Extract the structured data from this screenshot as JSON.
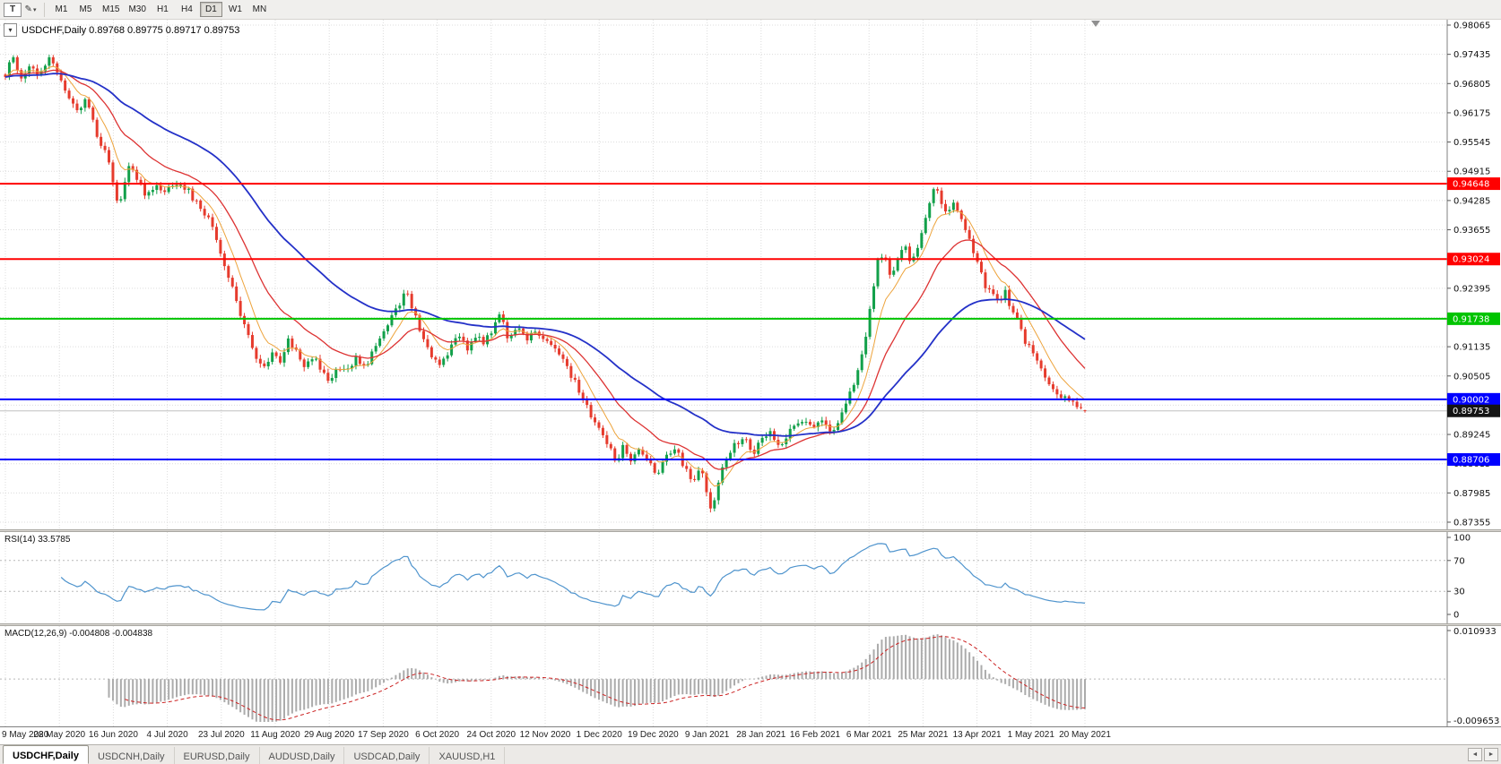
{
  "colors": {
    "up": "#12a04a",
    "down": "#e63b2d",
    "ma_fast": "#eda33b",
    "ma_mid": "#dd3333",
    "ma_slow": "#2431c8",
    "grid": "#dcdcdc"
  },
  "toolbar": {
    "text_tool_label": "T",
    "cursor_tool_glyph": "✎",
    "caret_glyph": "▾",
    "timeframes": [
      "M1",
      "M5",
      "M15",
      "M30",
      "H1",
      "H4",
      "D1",
      "W1",
      "MN"
    ],
    "active_timeframe": "D1"
  },
  "chart": {
    "header": "USDCHF,Daily 0.89768 0.89775 0.89717 0.89753",
    "header_toggle_glyph": "▾",
    "y_ticks": [
      "0.98065",
      "0.97435",
      "0.96805",
      "0.96175",
      "0.95545",
      "0.94915",
      "0.94285",
      "0.93655",
      "0.93025",
      "0.92395",
      "0.91765",
      "0.91135",
      "0.90505",
      "0.89875",
      "0.89245",
      "0.88615",
      "0.87985",
      "0.87355"
    ],
    "levels": [
      {
        "price": 0.94648,
        "label": "0.94648",
        "color": "#ff0000"
      },
      {
        "price": 0.93024,
        "label": "0.93024",
        "color": "#ff0000"
      },
      {
        "price": 0.91738,
        "label": "0.91738",
        "color": "#00c400"
      },
      {
        "price": 0.90002,
        "label": "0.90002",
        "color": "#0000ff"
      },
      {
        "price": 0.88706,
        "label": "0.88706",
        "color": "#0000ff"
      }
    ],
    "current_price": {
      "price": 0.89753,
      "label": "0.89753",
      "badge_bg": "#141414",
      "line_color": "#c0c0c0"
    },
    "dates": [
      "9 May 2020",
      "28 May 2020",
      "16 Jun 2020",
      "4 Jul 2020",
      "23 Jul 2020",
      "11 Aug 2020",
      "29 Aug 2020",
      "17 Sep 2020",
      "6 Oct 2020",
      "24 Oct 2020",
      "12 Nov 2020",
      "1 Dec 2020",
      "19 Dec 2020",
      "9 Jan 2021",
      "28 Jan 2021",
      "16 Feb 2021",
      "6 Mar 2021",
      "25 Mar 2021",
      "13 Apr 2021",
      "1 May 2021",
      "20 May 2021"
    ]
  },
  "rsi": {
    "label": "RSI(14) 33.5785",
    "axis_labels": [
      "100",
      "70",
      "30",
      "0"
    ],
    "axis_values": [
      100,
      70,
      30,
      0
    ],
    "guide_levels": [
      70,
      30
    ],
    "line_color": "#4f94cd"
  },
  "macd": {
    "label": "MACD(12,26,9) -0.004808 -0.004838",
    "axis_top": "0.010933",
    "axis_bottom": "-0.009653",
    "hist_color": "#ababab",
    "signal_color": "#cc2222"
  },
  "tabs": {
    "items": [
      "USDCHF,Daily",
      "USDCNH,Daily",
      "EURUSD,Daily",
      "AUDUSD,Daily",
      "USDCAD,Daily",
      "XAUUSD,H1"
    ],
    "active_index": 0,
    "scroll_left_glyph": "◄",
    "scroll_right_glyph": "►"
  },
  "chart_data": {
    "type": "candlestick",
    "symbol": "USDCHF",
    "timeframe": "Daily",
    "ohlc_last": {
      "open": 0.89768,
      "high": 0.89775,
      "low": 0.89717,
      "close": 0.89753
    },
    "bars": 272,
    "y_axis_range": [
      0.87355,
      0.98065
    ],
    "x_axis_dates": [
      "9 May 2020",
      "28 May 2020",
      "16 Jun 2020",
      "4 Jul 2020",
      "23 Jul 2020",
      "11 Aug 2020",
      "29 Aug 2020",
      "17 Sep 2020",
      "6 Oct 2020",
      "24 Oct 2020",
      "12 Nov 2020",
      "1 Dec 2020",
      "19 Dec 2020",
      "9 Jan 2021",
      "28 Jan 2021",
      "16 Feb 2021",
      "6 Mar 2021",
      "25 Mar 2021",
      "13 Apr 2021",
      "1 May 2021",
      "20 May 2021"
    ],
    "horizontal_levels": [
      0.94648,
      0.93024,
      0.91738,
      0.90002,
      0.88706
    ],
    "current_price": 0.89753,
    "price_path_anchors": [
      [
        0.0,
        0.97
      ],
      [
        0.006,
        0.9742
      ],
      [
        0.014,
        0.9688
      ],
      [
        0.022,
        0.9725
      ],
      [
        0.032,
        0.97
      ],
      [
        0.04,
        0.9735
      ],
      [
        0.05,
        0.9692
      ],
      [
        0.06,
        0.965
      ],
      [
        0.068,
        0.9612
      ],
      [
        0.076,
        0.965
      ],
      [
        0.085,
        0.9565
      ],
      [
        0.095,
        0.952
      ],
      [
        0.101,
        0.9445
      ],
      [
        0.106,
        0.9425
      ],
      [
        0.114,
        0.9498
      ],
      [
        0.122,
        0.9478
      ],
      [
        0.13,
        0.944
      ],
      [
        0.138,
        0.9462
      ],
      [
        0.148,
        0.9445
      ],
      [
        0.158,
        0.9468
      ],
      [
        0.168,
        0.9455
      ],
      [
        0.178,
        0.942
      ],
      [
        0.188,
        0.9395
      ],
      [
        0.194,
        0.935
      ],
      [
        0.2,
        0.931
      ],
      [
        0.208,
        0.9255
      ],
      [
        0.216,
        0.9195
      ],
      [
        0.224,
        0.914
      ],
      [
        0.232,
        0.9085
      ],
      [
        0.24,
        0.9065
      ],
      [
        0.248,
        0.911
      ],
      [
        0.256,
        0.9075
      ],
      [
        0.262,
        0.9135
      ],
      [
        0.27,
        0.91
      ],
      [
        0.278,
        0.907
      ],
      [
        0.286,
        0.909
      ],
      [
        0.294,
        0.906
      ],
      [
        0.3,
        0.904
      ],
      [
        0.308,
        0.9075
      ],
      [
        0.316,
        0.9058
      ],
      [
        0.324,
        0.909
      ],
      [
        0.332,
        0.9068
      ],
      [
        0.34,
        0.91
      ],
      [
        0.35,
        0.914
      ],
      [
        0.36,
        0.919
      ],
      [
        0.372,
        0.9232
      ],
      [
        0.38,
        0.918
      ],
      [
        0.388,
        0.912
      ],
      [
        0.396,
        0.9082
      ],
      [
        0.404,
        0.9076
      ],
      [
        0.412,
        0.911
      ],
      [
        0.42,
        0.9135
      ],
      [
        0.428,
        0.9112
      ],
      [
        0.436,
        0.914
      ],
      [
        0.444,
        0.912
      ],
      [
        0.452,
        0.9155
      ],
      [
        0.459,
        0.9185
      ],
      [
        0.466,
        0.913
      ],
      [
        0.474,
        0.9155
      ],
      [
        0.482,
        0.913
      ],
      [
        0.49,
        0.915
      ],
      [
        0.498,
        0.9128
      ],
      [
        0.509,
        0.9115
      ],
      [
        0.517,
        0.9085
      ],
      [
        0.525,
        0.9048
      ],
      [
        0.533,
        0.901
      ],
      [
        0.541,
        0.8975
      ],
      [
        0.549,
        0.8935
      ],
      [
        0.558,
        0.8905
      ],
      [
        0.566,
        0.8862
      ],
      [
        0.572,
        0.89
      ],
      [
        0.58,
        0.887
      ],
      [
        0.588,
        0.8895
      ],
      [
        0.596,
        0.8862
      ],
      [
        0.604,
        0.884
      ],
      [
        0.612,
        0.8872
      ],
      [
        0.62,
        0.8896
      ],
      [
        0.628,
        0.886
      ],
      [
        0.636,
        0.8825
      ],
      [
        0.644,
        0.8852
      ],
      [
        0.65,
        0.88
      ],
      [
        0.654,
        0.8762
      ],
      [
        0.66,
        0.882
      ],
      [
        0.668,
        0.8872
      ],
      [
        0.676,
        0.8905
      ],
      [
        0.684,
        0.892
      ],
      [
        0.692,
        0.8885
      ],
      [
        0.7,
        0.8908
      ],
      [
        0.708,
        0.8928
      ],
      [
        0.716,
        0.8898
      ],
      [
        0.724,
        0.8922
      ],
      [
        0.732,
        0.8945
      ],
      [
        0.74,
        0.8962
      ],
      [
        0.748,
        0.8942
      ],
      [
        0.756,
        0.8962
      ],
      [
        0.764,
        0.8925
      ],
      [
        0.772,
        0.8958
      ],
      [
        0.78,
        0.8995
      ],
      [
        0.788,
        0.905
      ],
      [
        0.796,
        0.912
      ],
      [
        0.802,
        0.921
      ],
      [
        0.808,
        0.9295
      ],
      [
        0.814,
        0.931
      ],
      [
        0.82,
        0.927
      ],
      [
        0.826,
        0.93
      ],
      [
        0.832,
        0.934
      ],
      [
        0.838,
        0.9295
      ],
      [
        0.844,
        0.932
      ],
      [
        0.85,
        0.9375
      ],
      [
        0.856,
        0.942
      ],
      [
        0.861,
        0.9455
      ],
      [
        0.866,
        0.943
      ],
      [
        0.872,
        0.94
      ],
      [
        0.878,
        0.943
      ],
      [
        0.884,
        0.939
      ],
      [
        0.89,
        0.936
      ],
      [
        0.896,
        0.932
      ],
      [
        0.902,
        0.928
      ],
      [
        0.908,
        0.9245
      ],
      [
        0.914,
        0.9235
      ],
      [
        0.92,
        0.921
      ],
      [
        0.926,
        0.9235
      ],
      [
        0.932,
        0.919
      ],
      [
        0.938,
        0.917
      ],
      [
        0.944,
        0.913
      ],
      [
        0.95,
        0.9105
      ],
      [
        0.956,
        0.909
      ],
      [
        0.964,
        0.905
      ],
      [
        0.972,
        0.902
      ],
      [
        0.98,
        0.9
      ],
      [
        0.988,
        0.9005
      ],
      [
        0.994,
        0.8985
      ],
      [
        1.0,
        0.8976
      ]
    ],
    "indicators": [
      {
        "name": "RSI",
        "params": "14",
        "last_value": 33.5785,
        "scale": [
          0,
          100
        ],
        "guide_levels": [
          30,
          70
        ]
      },
      {
        "name": "MACD",
        "params": "12,26,9",
        "values": [
          -0.004808,
          -0.004838
        ],
        "scale": [
          -0.009653,
          0.010933
        ]
      }
    ]
  }
}
